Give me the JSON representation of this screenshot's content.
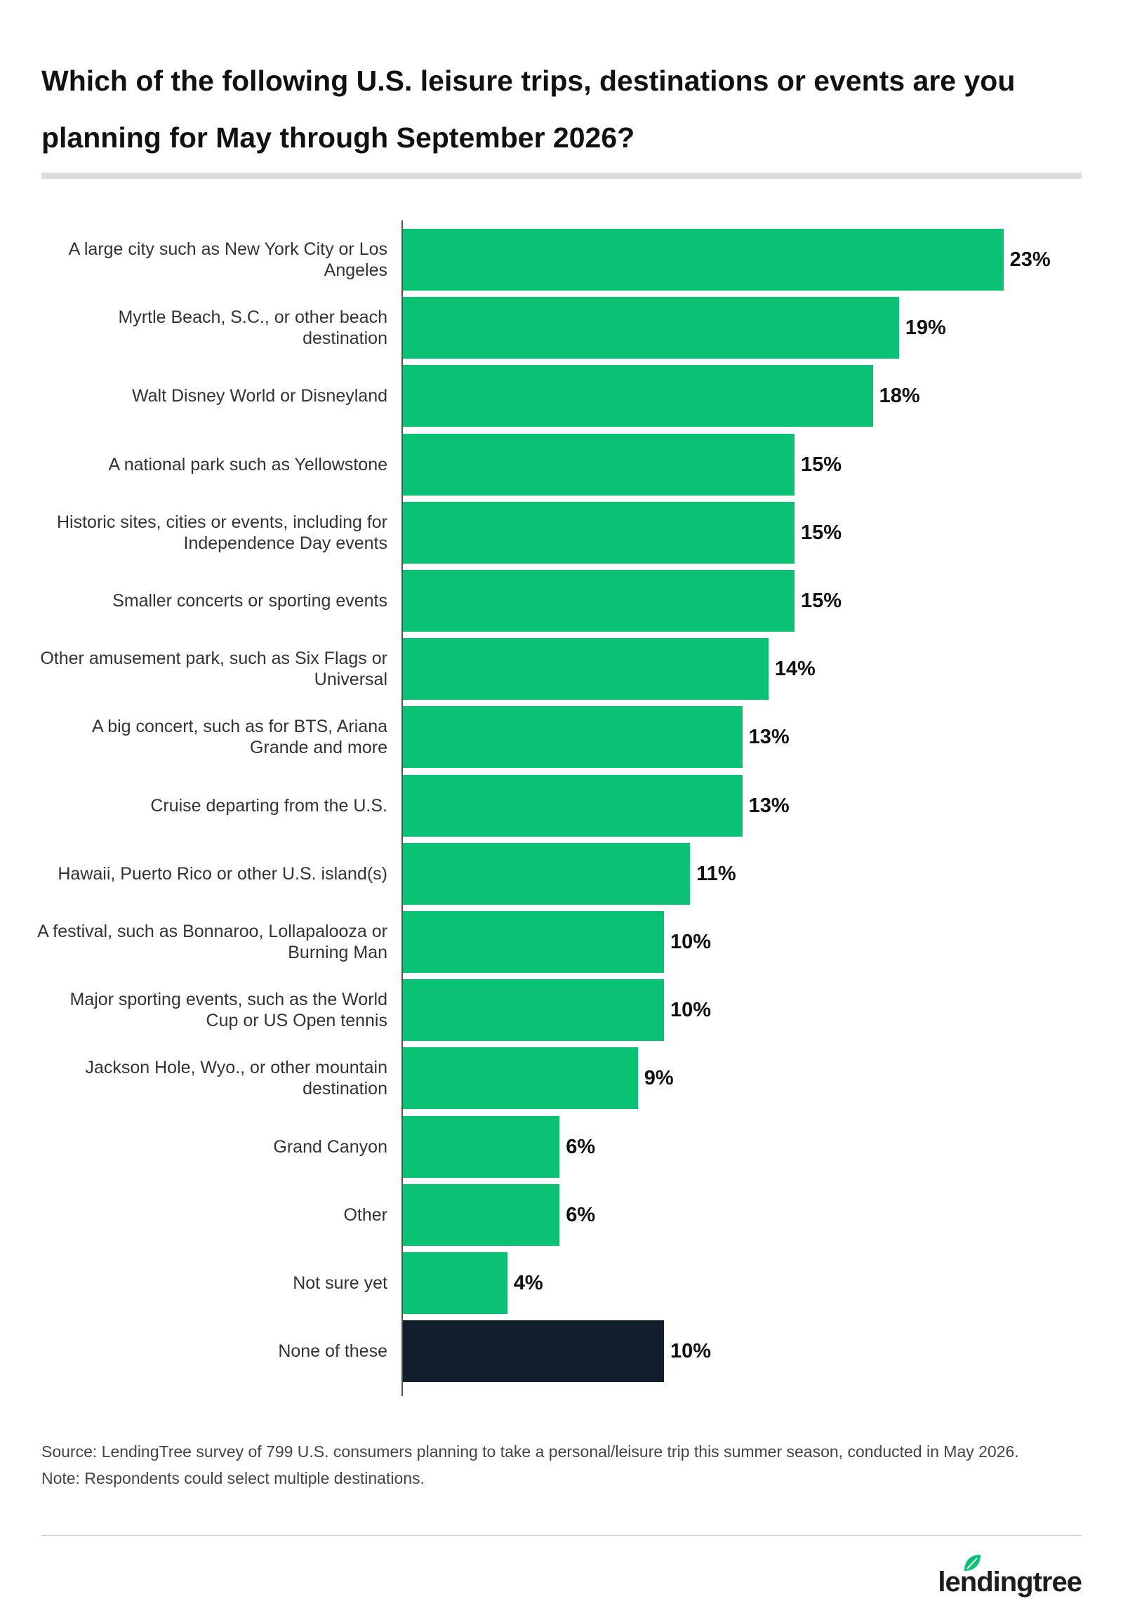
{
  "chart_data": {
    "type": "bar",
    "orientation": "horizontal",
    "title": "Which of the following U.S. leisure trips, destinations or events are you planning for May through September 2026?",
    "categories": [
      "A large city such as New York City or Los Angeles",
      "Myrtle Beach, S.C., or other beach destination",
      "Walt Disney World or Disneyland",
      "A national park such as Yellowstone",
      "Historic sites, cities or events, including for Independence Day events",
      "Smaller concerts or sporting events",
      "Other amusement park, such as Six Flags or Universal",
      "A big concert, such as for BTS, Ariana Grande and more",
      "Cruise departing from the U.S.",
      "Hawaii, Puerto Rico or other U.S. island(s)",
      "A festival, such as Bonnaroo, Lollapalooza or Burning Man",
      "Major sporting events, such as the World Cup or US Open tennis",
      "Jackson Hole, Wyo., or other mountain destination",
      "Grand Canyon",
      "Other",
      "Not sure yet",
      "None of these"
    ],
    "values": [
      23,
      19,
      18,
      15,
      15,
      15,
      14,
      13,
      13,
      11,
      10,
      10,
      9,
      6,
      6,
      4,
      10
    ],
    "value_labels": [
      "23%",
      "19%",
      "18%",
      "15%",
      "15%",
      "15%",
      "14%",
      "13%",
      "13%",
      "11%",
      "10%",
      "10%",
      "9%",
      "6%",
      "6%",
      "4%",
      "10%"
    ],
    "colors": [
      "#0bc174",
      "#0bc174",
      "#0bc174",
      "#0bc174",
      "#0bc174",
      "#0bc174",
      "#0bc174",
      "#0bc174",
      "#0bc174",
      "#0bc174",
      "#0bc174",
      "#0bc174",
      "#0bc174",
      "#0bc174",
      "#0bc174",
      "#0bc174",
      "#111e2d"
    ],
    "source": "Source: LendingTree survey of 799 U.S. consumers planning to take a personal/leisure trip this summer season, conducted in May 2026.",
    "note": "Note: Respondents could select multiple destinations.",
    "brand": "lendingtree"
  }
}
